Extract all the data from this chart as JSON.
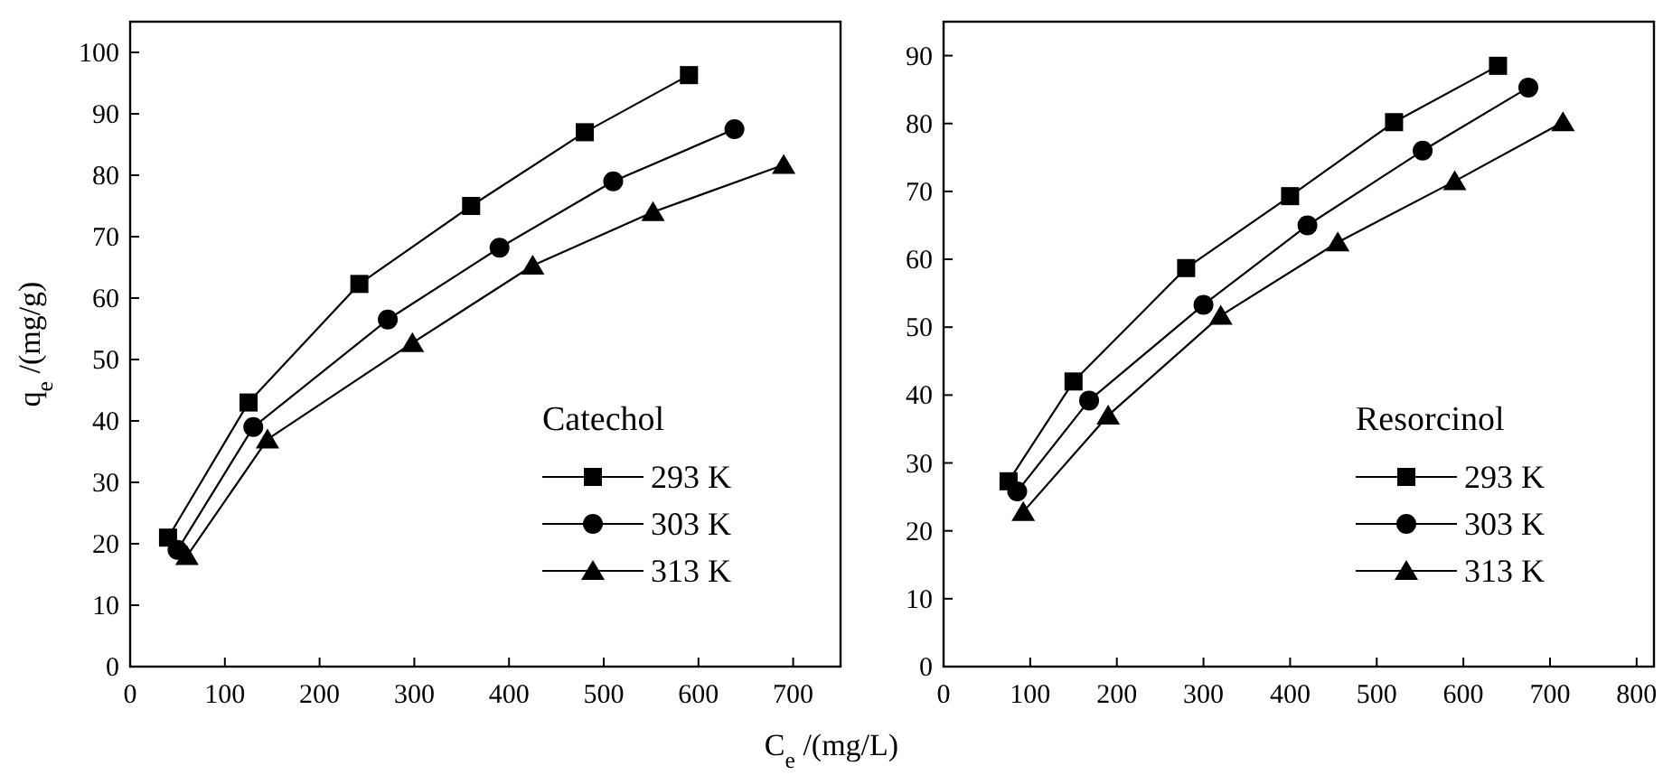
{
  "chart_data": [
    {
      "type": "line",
      "ylabel": "q$_{e}$ /(mg/g)",
      "xlabel": "C$_{e}$ /(mg/L)",
      "legend_title": "Catechol",
      "legend": "bottom right",
      "xlim": [
        0,
        750
      ],
      "xticks": [
        0,
        100,
        200,
        300,
        400,
        500,
        600,
        700
      ],
      "ylim": [
        0,
        105
      ],
      "yticks": [
        0,
        10,
        20,
        30,
        40,
        50,
        60,
        70,
        80,
        90,
        100
      ],
      "grid": false,
      "line_style": "solid",
      "series": [
        {
          "name": "293 K",
          "color": "#000000",
          "marker": "square",
          "x": [
            40,
            125,
            242,
            360,
            480,
            590
          ],
          "values": [
            21,
            43,
            62.3,
            75,
            87,
            96.3
          ]
        },
        {
          "name": "303 K",
          "color": "#000000",
          "marker": "circle",
          "x": [
            50,
            130,
            272,
            390,
            510,
            638
          ],
          "values": [
            19,
            39,
            56.5,
            68.2,
            79,
            87.5
          ]
        },
        {
          "name": "313 K",
          "color": "#000000",
          "marker": "triangle",
          "x": [
            60,
            145,
            298,
            425,
            552,
            690
          ],
          "values": [
            18,
            37,
            52.7,
            65.3,
            74,
            81.7
          ]
        }
      ]
    },
    {
      "type": "line",
      "legend_title": "Resorcinol",
      "legend": "bottom right",
      "xlim": [
        0,
        820
      ],
      "xticks": [
        0,
        100,
        200,
        300,
        400,
        500,
        600,
        700,
        800
      ],
      "ylim": [
        0,
        95
      ],
      "yticks": [
        0,
        10,
        20,
        30,
        40,
        50,
        60,
        70,
        80,
        90
      ],
      "grid": false,
      "line_style": "solid",
      "series": [
        {
          "name": "293 K",
          "color": "#000000",
          "marker": "square",
          "x": [
            75,
            150,
            280,
            400,
            520,
            640
          ],
          "values": [
            27.3,
            42,
            58.7,
            69.3,
            80.2,
            88.5
          ]
        },
        {
          "name": "303 K",
          "color": "#000000",
          "marker": "circle",
          "x": [
            85,
            168,
            300,
            420,
            553,
            675
          ],
          "values": [
            25.8,
            39.2,
            53.3,
            65,
            76,
            85.3
          ]
        },
        {
          "name": "313 K",
          "color": "#000000",
          "marker": "triangle",
          "x": [
            92,
            190,
            320,
            455,
            590,
            715
          ],
          "values": [
            22.8,
            37,
            51.7,
            62.5,
            71.5,
            80.2
          ]
        }
      ]
    }
  ]
}
